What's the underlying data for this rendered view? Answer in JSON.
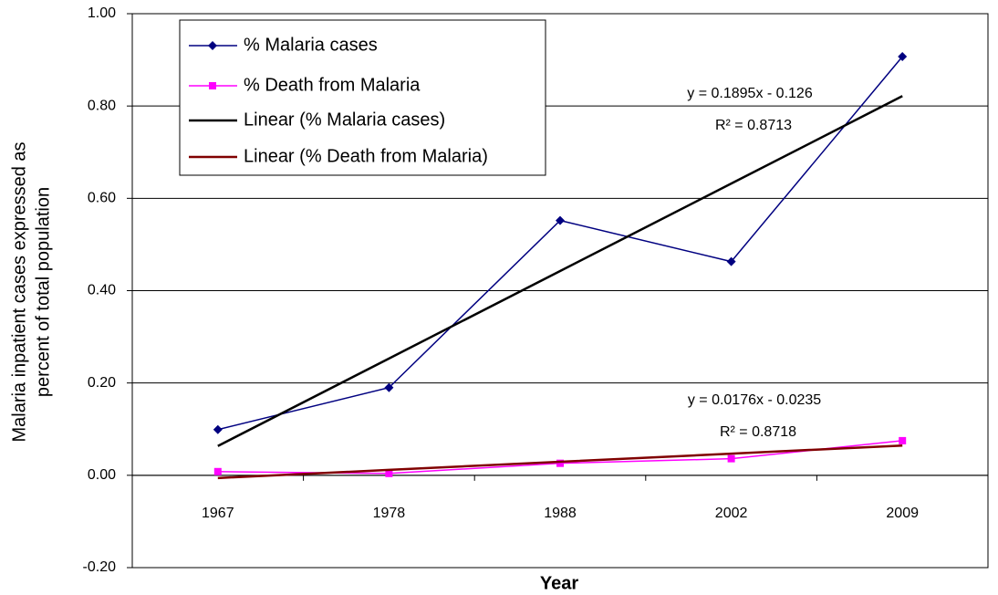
{
  "chart_data": {
    "type": "line",
    "x_label": "Year",
    "y_label": [
      "Malaria inpatient cases expressed as",
      "percent of total population"
    ],
    "categories": [
      "1967",
      "1978",
      "1988",
      "2002",
      "2009"
    ],
    "series": [
      {
        "name": "% Malaria cases",
        "color": "#000080",
        "marker": "diamond",
        "values": [
          0.099,
          0.19,
          0.552,
          0.463,
          0.907
        ]
      },
      {
        "name": "% Death from Malaria",
        "color": "#ff00ff",
        "marker": "square",
        "values": [
          0.008,
          0.004,
          0.026,
          0.036,
          0.075
        ]
      },
      {
        "name": "Linear (% Malaria cases)",
        "color": "#000000",
        "marker": "none",
        "values": [
          0.0635,
          0.253,
          0.4425,
          0.632,
          0.8215
        ]
      },
      {
        "name": "Linear (% Death from Malaria)",
        "color": "#800000",
        "marker": "none",
        "values": [
          -0.0059,
          0.0117,
          0.0293,
          0.0469,
          0.0645
        ]
      }
    ],
    "annotations": [
      {
        "equation": "y = 0.1895x - 0.126",
        "r_squared": "R² = 0.8713"
      },
      {
        "equation": "y = 0.0176x - 0.0235",
        "r_squared": "R² = 0.8718"
      }
    ],
    "ylim": [
      -0.2,
      1.0
    ],
    "yticks": [
      {
        "value": -0.2,
        "label": "-0.20"
      },
      {
        "value": 0,
        "label": "0.00"
      },
      {
        "value": 0.2,
        "label": "0.20"
      },
      {
        "value": 0.4,
        "label": "0.40"
      },
      {
        "value": 0.6,
        "label": "0.60"
      },
      {
        "value": 0.8,
        "label": "0.80"
      },
      {
        "value": 1,
        "label": "1.00"
      }
    ],
    "grid": true,
    "legend": "top-left"
  }
}
